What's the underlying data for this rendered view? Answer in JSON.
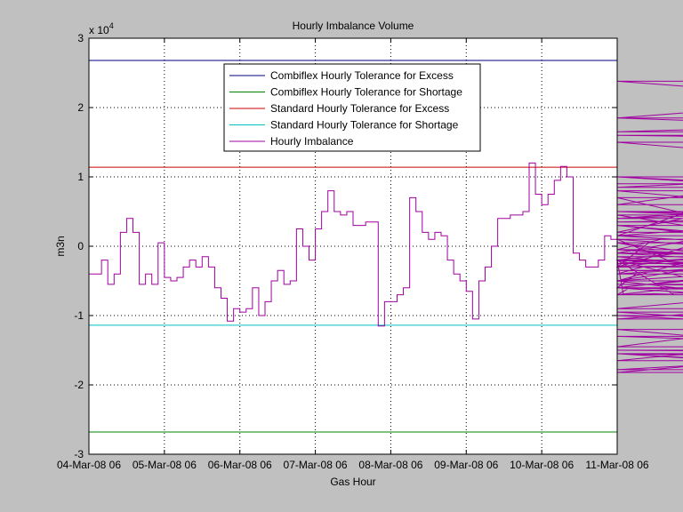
{
  "chart_data": {
    "type": "line",
    "title": "Hourly Imbalance Volume",
    "xlabel": "Gas Hour",
    "ylabel": "m3n",
    "y_exponent_label": "x 10",
    "y_exponent_power": "4",
    "y_multiplier": 10000,
    "ylim": [
      -3,
      3
    ],
    "yticks": [
      -3,
      -2,
      -1,
      0,
      1,
      2,
      3
    ],
    "ytick_labels": [
      "-3",
      "-2",
      "-1",
      "0",
      "1",
      "2",
      "3"
    ],
    "xlim": [
      "04-Mar-08 06",
      "11-Mar-08 06"
    ],
    "xticks": [
      "04-Mar-08 06",
      "05-Mar-08 06",
      "06-Mar-08 06",
      "07-Mar-08 06",
      "08-Mar-08 06",
      "09-Mar-08 06",
      "10-Mar-08 06",
      "11-Mar-08 06"
    ],
    "grid": true,
    "grid_style": "dotted",
    "legend_position": "top-center",
    "series": [
      {
        "name": "Combiflex Hourly Tolerance for Excess",
        "color": "#000080",
        "style": "hline",
        "value": 2.68
      },
      {
        "name": "Combiflex Hourly Tolerance for Shortage",
        "color": "#008000",
        "style": "hline",
        "value": -2.68
      },
      {
        "name": "Standard Hourly Tolerance for Excess",
        "color": "#cc0000",
        "style": "hline",
        "value": 1.14
      },
      {
        "name": "Standard Hourly Tolerance for Shortage",
        "color": "#00c0c0",
        "style": "hline",
        "value": -1.14
      },
      {
        "name": "Hourly Imbalance",
        "color": "#a000a0",
        "style": "stairs",
        "hours_per_tick": 24,
        "values": [
          -0.4,
          -0.4,
          -0.4,
          -0.4,
          -0.2,
          -0.2,
          -0.55,
          -0.55,
          -0.4,
          -0.4,
          0.2,
          0.2,
          0.4,
          0.4,
          0.2,
          0.2,
          -0.55,
          -0.55,
          -0.4,
          -0.4,
          -0.55,
          -0.55,
          0.05,
          0.05,
          -0.45,
          -0.45,
          -0.5,
          -0.5,
          -0.45,
          -0.45,
          -0.3,
          -0.3,
          -0.2,
          -0.2,
          -0.3,
          -0.3,
          -0.15,
          -0.15,
          -0.3,
          -0.3,
          -0.6,
          -0.6,
          -0.75,
          -0.75,
          -1.08,
          -1.08,
          -0.9,
          -0.9,
          -0.95,
          -0.95,
          -0.9,
          -0.9,
          -0.6,
          -0.6,
          -1.0,
          -1.0,
          -0.8,
          -0.8,
          -0.5,
          -0.5,
          -0.35,
          -0.35,
          -0.55,
          -0.55,
          -0.5,
          -0.5,
          0.25,
          0.25,
          0.0,
          0.0,
          -0.2,
          -0.2,
          0.25,
          0.25,
          0.5,
          0.5,
          0.8,
          0.8,
          0.5,
          0.5,
          0.45,
          0.45,
          0.5,
          0.5,
          0.3,
          0.3,
          0.3,
          0.3,
          0.35,
          0.35,
          0.35,
          0.35,
          -1.15,
          -1.15,
          -0.8,
          -0.8,
          -0.8,
          -0.8,
          -0.7,
          -0.7,
          -0.6,
          -0.6,
          0.7,
          0.7,
          0.5,
          0.5,
          0.2,
          0.2,
          0.1,
          0.1,
          0.2,
          0.2,
          0.15,
          0.15,
          -0.2,
          -0.2,
          -0.4,
          -0.4,
          -0.5,
          -0.5,
          -0.65,
          -0.65,
          -1.05,
          -1.05,
          -0.5,
          -0.5,
          -0.3,
          -0.3,
          0.0,
          0.0,
          0.4,
          0.4,
          0.4,
          0.4,
          0.45,
          0.45,
          0.45,
          0.45,
          0.5,
          0.5,
          1.2,
          1.2,
          0.75,
          0.75,
          0.6,
          0.6,
          0.75,
          0.75,
          0.95,
          0.95,
          1.15,
          1.15,
          1.0,
          1.0,
          -0.1,
          -0.1,
          -0.2,
          -0.2,
          -0.3,
          -0.3,
          -0.3,
          -0.3,
          -0.2,
          -0.2,
          0.15,
          0.15,
          0.1,
          0.1,
          -0.2,
          -0.2,
          -0.7,
          -0.7,
          -0.6,
          -0.6,
          -0.4,
          -0.4,
          -0.3,
          -0.3,
          0.05,
          0.05,
          -0.05,
          -0.05,
          0.1,
          0.1,
          -0.2,
          -0.2,
          -0.7,
          -0.7,
          -0.6,
          -0.6,
          -0.5,
          -0.5,
          -0.2,
          -0.2,
          -0.5,
          -0.5,
          -0.3,
          -0.3,
          -0.15,
          -0.15,
          -0.3,
          -0.3,
          0.15,
          0.15,
          0.7,
          0.7,
          0.3,
          0.3,
          0.15,
          0.15,
          0.3,
          0.3,
          0.1,
          0.1,
          -0.05,
          -0.05,
          -0.2,
          -0.2,
          0.05,
          0.05,
          -0.25,
          -0.25,
          -0.1,
          -0.1,
          0.35,
          0.35,
          0.4,
          0.4,
          0.5,
          0.5,
          0.4,
          0.4,
          0.6,
          0.6,
          1.0,
          1.0,
          0.85,
          0.85,
          1.0,
          1.0,
          0.8,
          0.8,
          0.5,
          0.5,
          0.45,
          0.45,
          -0.1,
          -0.1,
          -0.15,
          -0.15,
          -0.5,
          -0.5,
          -0.95,
          -0.95,
          -1.2,
          -1.2,
          -1.55,
          -1.55,
          -1.78,
          -1.78,
          -1.55,
          -1.55,
          -1.82,
          -1.82,
          -1.45,
          -1.45,
          -0.9,
          -0.9,
          -0.5,
          -0.5,
          -0.2,
          -0.2,
          -0.35,
          -0.35,
          -0.4,
          -0.4,
          -0.1,
          -0.1,
          -0.4,
          -0.4,
          -0.05,
          -0.05,
          -0.3,
          -0.3,
          -0.2,
          -0.2,
          -0.6,
          -0.6,
          -0.7,
          -0.7,
          -0.7,
          -0.7,
          -0.55,
          -0.55,
          -0.6,
          -0.6,
          -0.6,
          -0.6,
          -1.0,
          -1.0,
          -1.3,
          -1.3,
          -1.5,
          -1.5,
          -1.55,
          -1.55,
          -1.65,
          -1.65,
          -1.05,
          -1.05,
          -0.6,
          -0.6,
          0.15,
          0.15,
          -0.25,
          -0.25,
          0.2,
          0.2,
          1.65,
          1.65,
          1.85,
          1.85,
          2.38,
          2.38,
          1.85,
          1.85,
          1.6,
          1.6,
          1.5,
          1.5,
          0.9
        ]
      }
    ]
  }
}
